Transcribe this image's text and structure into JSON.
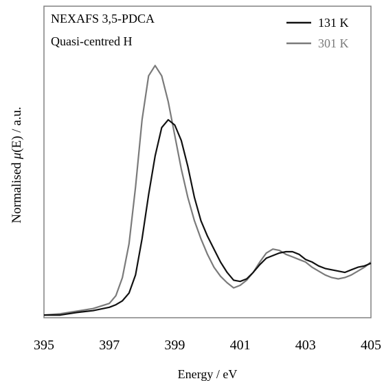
{
  "chart_data": {
    "type": "line",
    "title_lines": [
      "NEXAFS  3,5-PDCA",
      "Quasi-centred H"
    ],
    "xlabel": "Energy / eV",
    "ylabel_prefix": "Normalised ",
    "ylabel_mu": "μ",
    "ylabel_suffix": "(E) / a.u.",
    "xlim": [
      395,
      405
    ],
    "ylim": [
      0,
      1
    ],
    "xticks": [
      "395",
      "397",
      "399",
      "401",
      "403",
      "405"
    ],
    "xtick_values": [
      395,
      397,
      399,
      401,
      403,
      405
    ],
    "y_tick_labels_shown": false,
    "grid": false,
    "legend_position": "top-right",
    "series": [
      {
        "name": "131 K",
        "color": "#111111",
        "x": [
          395.0,
          395.5,
          396.0,
          396.5,
          397.0,
          397.2,
          397.4,
          397.6,
          397.8,
          398.0,
          398.2,
          398.4,
          398.6,
          398.8,
          399.0,
          399.2,
          399.4,
          399.6,
          399.8,
          400.0,
          400.2,
          400.4,
          400.6,
          400.8,
          401.0,
          401.2,
          401.4,
          401.6,
          401.8,
          402.0,
          402.2,
          402.4,
          402.6,
          402.8,
          403.0,
          403.2,
          403.4,
          403.6,
          403.8,
          404.0,
          404.2,
          404.4,
          404.6,
          404.8,
          405.0
        ],
        "values": [
          0.005,
          0.005,
          0.015,
          0.022,
          0.035,
          0.045,
          0.06,
          0.09,
          0.16,
          0.3,
          0.47,
          0.62,
          0.73,
          0.76,
          0.74,
          0.68,
          0.58,
          0.46,
          0.37,
          0.31,
          0.26,
          0.21,
          0.17,
          0.14,
          0.135,
          0.145,
          0.17,
          0.2,
          0.225,
          0.235,
          0.245,
          0.25,
          0.25,
          0.24,
          0.22,
          0.21,
          0.195,
          0.185,
          0.18,
          0.175,
          0.17,
          0.18,
          0.19,
          0.195,
          0.205
        ]
      },
      {
        "name": "301 K",
        "color": "#7a7a7a",
        "x": [
          395.0,
          395.5,
          396.0,
          396.5,
          397.0,
          397.2,
          397.4,
          397.6,
          397.8,
          398.0,
          398.2,
          398.4,
          398.6,
          398.8,
          399.0,
          399.2,
          399.4,
          399.6,
          399.8,
          400.0,
          400.2,
          400.4,
          400.6,
          400.8,
          401.0,
          401.2,
          401.4,
          401.6,
          401.8,
          402.0,
          402.2,
          402.4,
          402.6,
          402.8,
          403.0,
          403.2,
          403.4,
          403.6,
          403.8,
          404.0,
          404.2,
          404.4,
          404.6,
          404.8,
          405.0
        ],
        "values": [
          0.005,
          0.01,
          0.02,
          0.03,
          0.05,
          0.08,
          0.15,
          0.28,
          0.5,
          0.76,
          0.93,
          0.97,
          0.93,
          0.83,
          0.7,
          0.57,
          0.46,
          0.37,
          0.3,
          0.24,
          0.19,
          0.155,
          0.13,
          0.11,
          0.12,
          0.14,
          0.17,
          0.21,
          0.245,
          0.26,
          0.255,
          0.24,
          0.23,
          0.22,
          0.21,
          0.19,
          0.175,
          0.16,
          0.15,
          0.145,
          0.15,
          0.16,
          0.175,
          0.19,
          0.21
        ]
      }
    ]
  }
}
